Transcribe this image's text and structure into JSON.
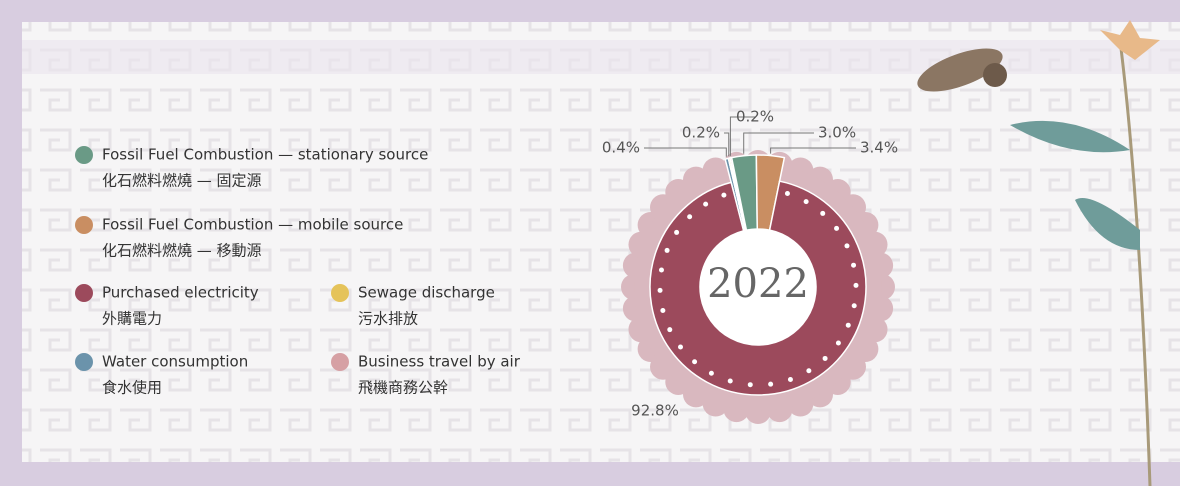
{
  "chart_data": {
    "type": "pie",
    "center_label": "2022",
    "categories": [
      "Water consumption",
      "Sewage discharge",
      "Business travel by air",
      "Fossil Fuel Combustion — stationary source",
      "Fossil Fuel Combustion — mobile source",
      "Purchased electricity"
    ],
    "categories_zh": [
      "食水使用",
      "污水排放",
      "飛機商務公幹",
      "化石燃料燃燒 — 固定源",
      "化石燃料燃燒 — 移動源",
      "外購電力"
    ],
    "values": [
      0.4,
      0.2,
      0.2,
      3.0,
      3.4,
      92.8
    ],
    "value_labels": [
      "0.4%",
      "0.2%",
      "0.2%",
      "3.0%",
      "3.4%",
      "92.8%"
    ],
    "colors": [
      "#6b93ab",
      "#e5c35a",
      "#d6a0a4",
      "#6a9a86",
      "#c98e62",
      "#9c4a5c"
    ]
  }
}
